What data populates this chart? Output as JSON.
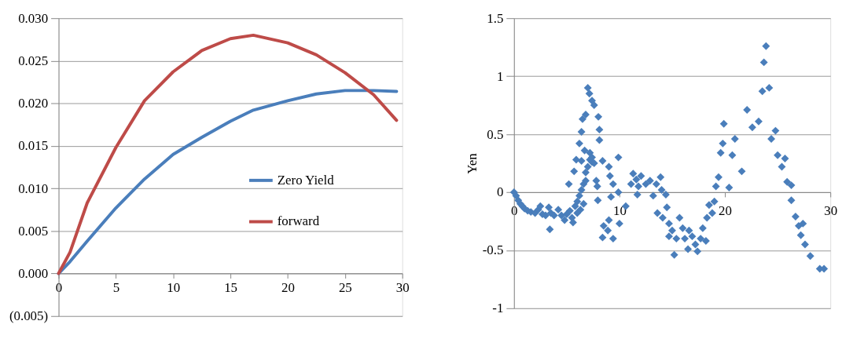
{
  "chart_data": [
    {
      "type": "line",
      "xlim": [
        0,
        30
      ],
      "xticks": [
        0,
        5,
        10,
        15,
        20,
        25,
        30
      ],
      "ylim": [
        -0.005,
        0.03
      ],
      "yticks": [
        {
          "value": -0.005,
          "label": "(0.005)"
        },
        {
          "value": 0,
          "label": "0.000"
        },
        {
          "value": 0.005,
          "label": "0.005"
        },
        {
          "value": 0.01,
          "label": "0.010"
        },
        {
          "value": 0.015,
          "label": "0.015"
        },
        {
          "value": 0.02,
          "label": "0.020"
        },
        {
          "value": 0.025,
          "label": "0.025"
        },
        {
          "value": 0.03,
          "label": "0.030"
        }
      ],
      "grid": "y",
      "legend": "right",
      "line_style": "solid",
      "x": [
        0,
        1,
        2.5,
        5,
        7.5,
        10,
        12.5,
        15,
        17,
        20,
        22.5,
        25,
        27.5,
        29.5
      ],
      "series": [
        {
          "name": "Zero Yield",
          "color": "#4a7ebb",
          "values": [
            0,
            0.0014,
            0.0038,
            0.0077,
            0.0111,
            0.014,
            0.016,
            0.0179,
            0.0192,
            0.0203,
            0.0211,
            0.0215,
            0.0215,
            0.0214
          ]
        },
        {
          "name": "forward",
          "color": "#be4b48",
          "values": [
            0,
            0.0025,
            0.0083,
            0.0148,
            0.0203,
            0.0237,
            0.0262,
            0.0276,
            0.028,
            0.0271,
            0.0257,
            0.0236,
            0.021,
            0.018
          ]
        }
      ]
    },
    {
      "type": "scatter",
      "ylabel": "Yen",
      "xlim": [
        0,
        30
      ],
      "xticks": [
        0,
        10,
        20,
        30
      ],
      "ylim": [
        -1,
        1.5
      ],
      "yticks": [
        -1,
        -0.5,
        0,
        0.5,
        1,
        1.5
      ],
      "grid": "y",
      "marker": "diamond",
      "x": [
        0,
        0.2,
        0.4,
        0.6,
        0.8,
        1,
        1.3,
        1.6,
        2,
        2.3,
        2.5,
        2.7,
        3,
        3.3,
        3.4,
        3.5,
        3.8,
        4.2,
        4.5,
        4.8,
        5,
        5.2,
        5.3,
        5.5,
        5.6,
        5.7,
        5.8,
        5.9,
        6,
        6,
        6.2,
        6.2,
        6.3,
        6.4,
        6.4,
        6.4,
        6.5,
        6.6,
        6.6,
        6.7,
        6.8,
        6.8,
        6.8,
        7,
        7,
        7.15,
        7.2,
        7.2,
        7.4,
        7.4,
        7.4,
        7.6,
        7.6,
        7.8,
        7.9,
        7.95,
        8,
        8.1,
        8.1,
        8.4,
        8.4,
        8.5,
        8.9,
        9,
        9,
        9.1,
        9.2,
        9.4,
        9.4,
        9.9,
        9.9,
        10,
        10.6,
        11.1,
        11.3,
        11.6,
        11.7,
        11.8,
        12.05,
        12.5,
        12.9,
        13.2,
        13.5,
        13.6,
        13.9,
        14,
        14.1,
        14.4,
        14.5,
        14.7,
        14.7,
        15,
        15.2,
        15.4,
        15.7,
        16,
        16.2,
        16.5,
        16.6,
        16.9,
        17.2,
        17.4,
        17.7,
        17.9,
        18.2,
        18.3,
        18.5,
        18.8,
        19,
        19.15,
        19.4,
        19.6,
        19.8,
        19.9,
        20.4,
        20.7,
        20.95,
        21.6,
        22.1,
        22.6,
        23.2,
        23.55,
        23.7,
        23.9,
        24.2,
        24.4,
        24.8,
        25,
        25.4,
        25.7,
        25.9,
        26.3,
        26.3,
        26.7,
        27,
        27.2,
        27.4,
        27.6,
        28.1,
        29,
        29.4
      ],
      "series": [
        {
          "color": "#4a7ebb",
          "values": [
            0,
            -0.03,
            -0.07,
            -0.1,
            -0.12,
            -0.14,
            -0.16,
            -0.17,
            -0.18,
            -0.15,
            -0.12,
            -0.19,
            -0.2,
            -0.13,
            -0.32,
            -0.18,
            -0.2,
            -0.15,
            -0.2,
            -0.24,
            -0.19,
            0.07,
            -0.16,
            -0.22,
            -0.26,
            0.18,
            -0.12,
            0.28,
            -0.08,
            -0.18,
            0.42,
            -0.03,
            -0.15,
            0.02,
            0.52,
            0.27,
            0.63,
            0.07,
            -0.1,
            0.36,
            0.1,
            0.17,
            0.67,
            0.9,
            0.22,
            0.85,
            0.28,
            0.34,
            0.79,
            0.3,
            0.26,
            0.75,
            0.25,
            0.1,
            0.05,
            -0.07,
            0.65,
            0.54,
            0.45,
            0.27,
            -0.39,
            -0.29,
            -0.33,
            0.22,
            -0.24,
            0.14,
            -0.04,
            0.07,
            -0.4,
            0.3,
            0,
            -0.27,
            -0.12,
            0.07,
            0.16,
            0.11,
            -0.02,
            0.05,
            0.14,
            0.07,
            0.1,
            -0.03,
            0.07,
            -0.18,
            0.13,
            0.02,
            -0.22,
            -0.02,
            -0.13,
            -0.27,
            -0.38,
            -0.33,
            -0.54,
            -0.4,
            -0.22,
            -0.31,
            -0.4,
            -0.49,
            -0.33,
            -0.38,
            -0.45,
            -0.51,
            -0.4,
            -0.31,
            -0.42,
            -0.22,
            -0.11,
            -0.18,
            -0.08,
            0.05,
            0.13,
            0.34,
            0.42,
            0.59,
            0.04,
            0.32,
            0.46,
            0.18,
            0.71,
            0.56,
            0.61,
            0.87,
            1.12,
            1.26,
            0.9,
            0.46,
            0.53,
            0.32,
            0.22,
            0.29,
            0.09,
            0.06,
            -0.07,
            -0.21,
            -0.29,
            -0.37,
            -0.27,
            -0.45,
            -0.55,
            -0.66,
            -0.66
          ]
        }
      ]
    }
  ]
}
